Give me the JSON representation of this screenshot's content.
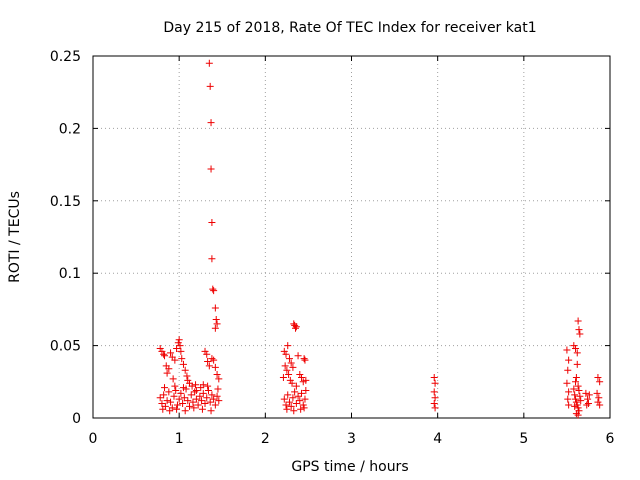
{
  "chart_data": {
    "type": "scatter",
    "title": "Day 215 of 2018, Rate Of TEC Index for receiver kat1",
    "xlabel": "GPS time / hours",
    "ylabel": "ROTI / TECUs",
    "xlim": [
      0,
      6
    ],
    "ylim": [
      0,
      0.25
    ],
    "grid": true,
    "marker": "+",
    "color": "#ee0000",
    "xticks": [
      0,
      1,
      2,
      3,
      4,
      5,
      6
    ],
    "xtick_labels": [
      "0",
      "1",
      "2",
      "3",
      "4",
      "5",
      "6"
    ],
    "yticks": [
      0,
      0.05,
      0.1,
      0.15,
      0.2,
      0.25
    ],
    "ytick_labels": [
      "0",
      "0.05",
      "0.1",
      "0.15",
      "0.2",
      "0.25"
    ],
    "series": [
      {
        "name": "kat1",
        "points": [
          [
            1.35,
            0.245
          ],
          [
            1.36,
            0.229
          ],
          [
            1.37,
            0.204
          ],
          [
            1.37,
            0.172
          ],
          [
            1.38,
            0.135
          ],
          [
            1.38,
            0.11
          ],
          [
            1.39,
            0.089
          ],
          [
            1.4,
            0.088
          ],
          [
            1.42,
            0.076
          ],
          [
            1.43,
            0.068
          ],
          [
            1.42,
            0.062
          ],
          [
            1.44,
            0.065
          ],
          [
            0.78,
            0.048
          ],
          [
            0.8,
            0.046
          ],
          [
            0.82,
            0.044
          ],
          [
            0.83,
            0.043
          ],
          [
            0.85,
            0.036
          ],
          [
            0.88,
            0.034
          ],
          [
            0.9,
            0.045
          ],
          [
            0.92,
            0.042
          ],
          [
            0.95,
            0.04
          ],
          [
            0.97,
            0.048
          ],
          [
            0.99,
            0.052
          ],
          [
            1.0,
            0.054
          ],
          [
            1.01,
            0.05
          ],
          [
            1.02,
            0.046
          ],
          [
            1.03,
            0.041
          ],
          [
            1.05,
            0.037
          ],
          [
            1.07,
            0.033
          ],
          [
            1.09,
            0.029
          ],
          [
            1.1,
            0.026
          ],
          [
            1.12,
            0.024
          ],
          [
            0.86,
            0.031
          ],
          [
            0.93,
            0.027
          ],
          [
            1.15,
            0.022
          ],
          [
            1.2,
            0.019
          ],
          [
            1.3,
            0.046
          ],
          [
            1.32,
            0.044
          ],
          [
            1.33,
            0.039
          ],
          [
            1.35,
            0.036
          ],
          [
            1.38,
            0.041
          ],
          [
            1.4,
            0.04
          ],
          [
            1.42,
            0.035
          ],
          [
            1.44,
            0.03
          ],
          [
            1.46,
            0.027
          ],
          [
            1.25,
            0.021
          ],
          [
            1.28,
            0.023
          ],
          [
            0.78,
            0.014
          ],
          [
            0.8,
            0.01
          ],
          [
            0.82,
            0.016
          ],
          [
            0.84,
            0.008
          ],
          [
            0.86,
            0.012
          ],
          [
            0.88,
            0.018
          ],
          [
            0.9,
            0.011
          ],
          [
            0.92,
            0.007
          ],
          [
            0.94,
            0.015
          ],
          [
            0.96,
            0.019
          ],
          [
            0.98,
            0.009
          ],
          [
            1.0,
            0.013
          ],
          [
            1.02,
            0.017
          ],
          [
            1.04,
            0.01
          ],
          [
            1.06,
            0.014
          ],
          [
            1.08,
            0.02
          ],
          [
            1.1,
            0.012
          ],
          [
            1.12,
            0.008
          ],
          [
            1.14,
            0.016
          ],
          [
            1.16,
            0.011
          ],
          [
            1.18,
            0.018
          ],
          [
            1.2,
            0.013
          ],
          [
            1.22,
            0.009
          ],
          [
            1.24,
            0.015
          ],
          [
            1.26,
            0.012
          ],
          [
            1.28,
            0.017
          ],
          [
            1.3,
            0.01
          ],
          [
            1.32,
            0.014
          ],
          [
            1.34,
            0.019
          ],
          [
            1.36,
            0.011
          ],
          [
            1.38,
            0.016
          ],
          [
            1.4,
            0.013
          ],
          [
            1.42,
            0.009
          ],
          [
            1.44,
            0.015
          ],
          [
            1.46,
            0.012
          ],
          [
            0.81,
            0.006
          ],
          [
            0.89,
            0.005
          ],
          [
            0.97,
            0.006
          ],
          [
            1.07,
            0.005
          ],
          [
            1.17,
            0.007
          ],
          [
            1.27,
            0.006
          ],
          [
            1.37,
            0.005
          ],
          [
            0.83,
            0.021
          ],
          [
            0.95,
            0.022
          ],
          [
            1.05,
            0.021
          ],
          [
            1.19,
            0.023
          ],
          [
            1.33,
            0.022
          ],
          [
            1.45,
            0.02
          ],
          [
            2.22,
            0.046
          ],
          [
            2.24,
            0.044
          ],
          [
            2.26,
            0.05
          ],
          [
            2.28,
            0.041
          ],
          [
            2.3,
            0.038
          ],
          [
            2.32,
            0.035
          ],
          [
            2.33,
            0.065
          ],
          [
            2.34,
            0.064
          ],
          [
            2.35,
            0.062
          ],
          [
            2.36,
            0.063
          ],
          [
            2.38,
            0.043
          ],
          [
            2.4,
            0.03
          ],
          [
            2.42,
            0.028
          ],
          [
            2.44,
            0.025
          ],
          [
            2.45,
            0.041
          ],
          [
            2.46,
            0.04
          ],
          [
            2.25,
            0.033
          ],
          [
            2.27,
            0.03
          ],
          [
            2.29,
            0.026
          ],
          [
            2.31,
            0.024
          ],
          [
            2.23,
            0.036
          ],
          [
            2.36,
            0.022
          ],
          [
            2.47,
            0.026
          ],
          [
            2.21,
            0.028
          ],
          [
            2.22,
            0.013
          ],
          [
            2.24,
            0.009
          ],
          [
            2.26,
            0.016
          ],
          [
            2.28,
            0.011
          ],
          [
            2.3,
            0.008
          ],
          [
            2.32,
            0.014
          ],
          [
            2.34,
            0.018
          ],
          [
            2.36,
            0.01
          ],
          [
            2.38,
            0.015
          ],
          [
            2.4,
            0.012
          ],
          [
            2.42,
            0.017
          ],
          [
            2.44,
            0.009
          ],
          [
            2.46,
            0.013
          ],
          [
            2.47,
            0.019
          ],
          [
            2.25,
            0.006
          ],
          [
            2.33,
            0.005
          ],
          [
            2.41,
            0.006
          ],
          [
            2.45,
            0.007
          ],
          [
            3.96,
            0.028
          ],
          [
            3.97,
            0.024
          ],
          [
            3.96,
            0.018
          ],
          [
            3.97,
            0.014
          ],
          [
            3.96,
            0.01
          ],
          [
            3.97,
            0.007
          ],
          [
            5.5,
            0.047
          ],
          [
            5.52,
            0.04
          ],
          [
            5.51,
            0.033
          ],
          [
            5.5,
            0.024
          ],
          [
            5.52,
            0.018
          ],
          [
            5.51,
            0.013
          ],
          [
            5.52,
            0.009
          ],
          [
            5.58,
            0.05
          ],
          [
            5.6,
            0.048
          ],
          [
            5.62,
            0.045
          ],
          [
            5.63,
            0.067
          ],
          [
            5.64,
            0.061
          ],
          [
            5.65,
            0.058
          ],
          [
            5.62,
            0.037
          ],
          [
            5.61,
            0.028
          ],
          [
            5.6,
            0.025
          ],
          [
            5.63,
            0.022
          ],
          [
            5.64,
            0.019
          ],
          [
            5.59,
            0.016
          ],
          [
            5.6,
            0.013
          ],
          [
            5.61,
            0.011
          ],
          [
            5.62,
            0.009
          ],
          [
            5.63,
            0.007
          ],
          [
            5.64,
            0.005
          ],
          [
            5.65,
            0.015
          ],
          [
            5.66,
            0.012
          ],
          [
            5.58,
            0.02
          ],
          [
            5.59,
            0.008
          ],
          [
            5.61,
            0.003
          ],
          [
            5.63,
            0.002
          ],
          [
            5.72,
            0.017
          ],
          [
            5.74,
            0.013
          ],
          [
            5.75,
            0.01
          ],
          [
            5.76,
            0.016
          ],
          [
            5.73,
            0.009
          ],
          [
            5.86,
            0.028
          ],
          [
            5.88,
            0.025
          ],
          [
            5.85,
            0.017
          ],
          [
            5.87,
            0.014
          ],
          [
            5.86,
            0.011
          ],
          [
            5.88,
            0.009
          ]
        ]
      }
    ]
  }
}
